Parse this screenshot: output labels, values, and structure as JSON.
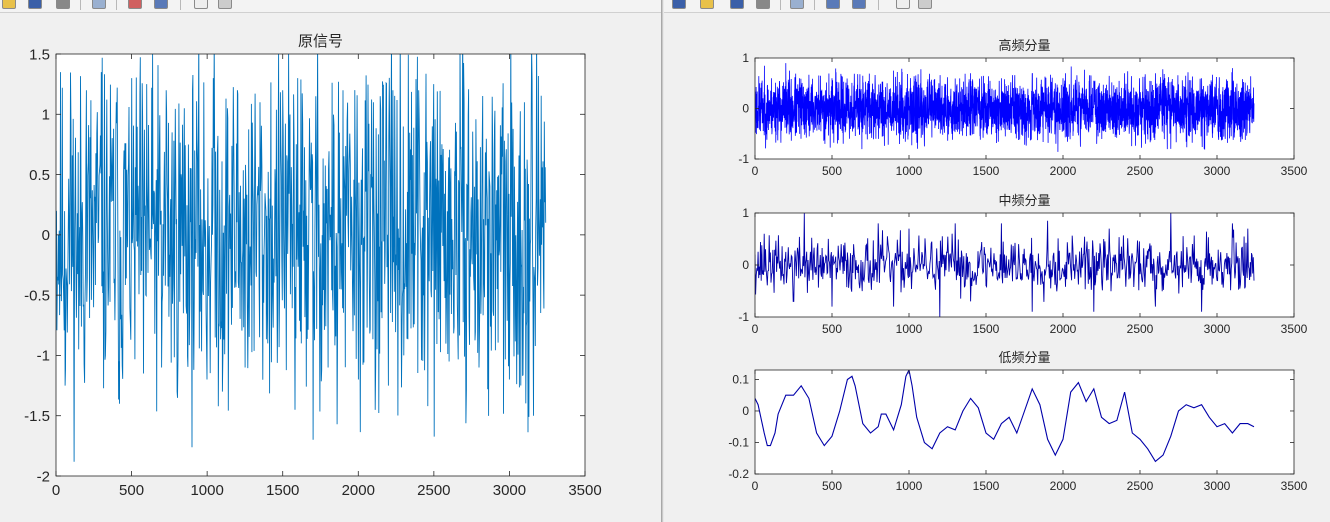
{
  "toolbar_icons": [
    "new-figure-icon",
    "open-file-icon",
    "print-icon",
    "zoom-icon",
    "data-cursor-icon",
    "insert-colorbar-icon",
    "pointer-arrow-icon",
    "edit-plot-icon"
  ],
  "colors": {
    "signal_line": "#0072bd",
    "component_line": "#0000ff",
    "low_line": "#0000aa",
    "axes_bg": "#ffffff",
    "figure_bg": "#f0f0f0"
  },
  "chart_data": [
    {
      "type": "line",
      "title": "原信号",
      "xlabel": "",
      "ylabel": "",
      "xlim": [
        0,
        3500
      ],
      "ylim": [
        -2,
        1.5
      ],
      "xticks": [
        "0",
        "500",
        "1000",
        "1500",
        "2000",
        "2500",
        "3000",
        "3500"
      ],
      "yticks": [
        "-2",
        "-1.5",
        "-1",
        "-0.5",
        "0",
        "0.5",
        "1",
        "1.5"
      ],
      "n_samples": 3240,
      "x": [
        0,
        30,
        60,
        100,
        150,
        200,
        250,
        300,
        330,
        400,
        420,
        450,
        500,
        580,
        600,
        700,
        730,
        800,
        850,
        1000,
        1040,
        1100,
        1200,
        1250,
        1350,
        1400,
        1500,
        1580,
        1600,
        1700,
        1720,
        1800,
        1860,
        1900,
        2000,
        2100,
        2200,
        2230,
        2300,
        2400,
        2460,
        2500,
        2600,
        2700,
        2800,
        2900,
        3000,
        3100,
        3150,
        3160,
        3240
      ],
      "values": [
        0.2,
        1.35,
        -1.25,
        0.9,
        -0.95,
        1.2,
        -0.6,
        1.35,
        -0.8,
        1.1,
        -1.4,
        0.7,
        1.3,
        -1.15,
        1.25,
        -1.1,
        1.2,
        -1.3,
        1.05,
        -1.2,
        1.3,
        -1.3,
        1.2,
        -1.1,
        1.1,
        -0.9,
        1.2,
        -1.45,
        1.3,
        -1.7,
        1.15,
        -1.1,
        -1.57,
        1.2,
        -1.2,
        1.1,
        -1.25,
        1.2,
        -1.0,
        1.2,
        -1.42,
        1.25,
        -1.05,
        1.1,
        -1.1,
        0.9,
        -1.2,
        1.1,
        1.28,
        -1.5,
        0.1
      ]
    },
    {
      "type": "line",
      "title": "高频分量",
      "xlabel": "",
      "ylabel": "",
      "xlim": [
        0,
        3500
      ],
      "ylim": [
        -1,
        1
      ],
      "xticks": [
        "0",
        "500",
        "1000",
        "1500",
        "2000",
        "2500",
        "3000",
        "3500"
      ],
      "yticks": [
        "-1",
        "0",
        "1"
      ],
      "n_samples": 3240,
      "x": [
        0,
        200,
        500,
        700,
        900,
        1100,
        1400,
        1600,
        1800,
        2000,
        2200,
        2400,
        2600,
        2700,
        2900,
        3100,
        3240
      ],
      "values": [
        0.0,
        0.9,
        0.6,
        0.65,
        0.75,
        -0.75,
        0.7,
        0.6,
        0.7,
        0.6,
        0.55,
        0.7,
        0.7,
        -0.8,
        0.6,
        0.8,
        0.1
      ]
    },
    {
      "type": "line",
      "title": "中频分量",
      "xlabel": "",
      "ylabel": "",
      "xlim": [
        0,
        3500
      ],
      "ylim": [
        -1,
        1
      ],
      "xticks": [
        "0",
        "500",
        "1000",
        "1500",
        "2000",
        "2500",
        "3000",
        "3500"
      ],
      "yticks": [
        "-1",
        "0",
        "1"
      ],
      "n_samples": 3240,
      "x": [
        0,
        60,
        250,
        320,
        500,
        800,
        900,
        1000,
        1200,
        1300,
        1400,
        1600,
        1800,
        1900,
        2200,
        2300,
        2600,
        2700,
        2900,
        3100,
        3200,
        3240
      ],
      "values": [
        0.2,
        0.6,
        -0.7,
        1.0,
        -0.8,
        0.8,
        -0.8,
        0.7,
        -1.0,
        0.8,
        -0.7,
        0.8,
        -0.9,
        0.85,
        -0.9,
        0.7,
        -0.8,
        1.0,
        -0.9,
        0.8,
        0.7,
        -0.3
      ]
    },
    {
      "type": "line",
      "title": "低频分量",
      "xlabel": "",
      "ylabel": "",
      "xlim": [
        0,
        3500
      ],
      "ylim": [
        -0.2,
        0.13
      ],
      "xticks": [
        "0",
        "500",
        "1000",
        "1500",
        "2000",
        "2500",
        "3000",
        "3500"
      ],
      "yticks": [
        "-0.2",
        "-0.1",
        "0",
        "0.1"
      ],
      "x": [
        0,
        20,
        60,
        80,
        100,
        130,
        150,
        200,
        250,
        300,
        350,
        400,
        450,
        500,
        550,
        600,
        630,
        650,
        700,
        750,
        800,
        820,
        850,
        900,
        950,
        980,
        1000,
        1020,
        1050,
        1100,
        1150,
        1200,
        1250,
        1300,
        1350,
        1400,
        1450,
        1500,
        1550,
        1600,
        1650,
        1700,
        1750,
        1800,
        1850,
        1900,
        1950,
        2000,
        2050,
        2100,
        2150,
        2200,
        2250,
        2300,
        2350,
        2400,
        2450,
        2500,
        2550,
        2600,
        2650,
        2700,
        2750,
        2800,
        2850,
        2900,
        2950,
        3000,
        3050,
        3100,
        3150,
        3200,
        3240
      ],
      "values": [
        0.04,
        0.02,
        -0.07,
        -0.11,
        -0.11,
        -0.07,
        -0.01,
        0.05,
        0.05,
        0.08,
        0.04,
        -0.07,
        -0.11,
        -0.08,
        0.0,
        0.1,
        0.11,
        0.08,
        -0.04,
        -0.07,
        -0.05,
        -0.01,
        -0.01,
        -0.06,
        0.02,
        0.11,
        0.13,
        0.08,
        -0.02,
        -0.1,
        -0.12,
        -0.07,
        -0.05,
        -0.06,
        0.0,
        0.04,
        0.01,
        -0.07,
        -0.09,
        -0.04,
        -0.02,
        -0.07,
        0.0,
        0.07,
        0.02,
        -0.09,
        -0.14,
        -0.09,
        0.06,
        0.09,
        0.03,
        0.07,
        -0.02,
        -0.04,
        -0.03,
        0.06,
        -0.07,
        -0.09,
        -0.12,
        -0.16,
        -0.14,
        -0.08,
        0.0,
        0.02,
        0.01,
        0.02,
        -0.02,
        -0.05,
        -0.04,
        -0.07,
        -0.04,
        -0.04,
        -0.05
      ]
    }
  ]
}
